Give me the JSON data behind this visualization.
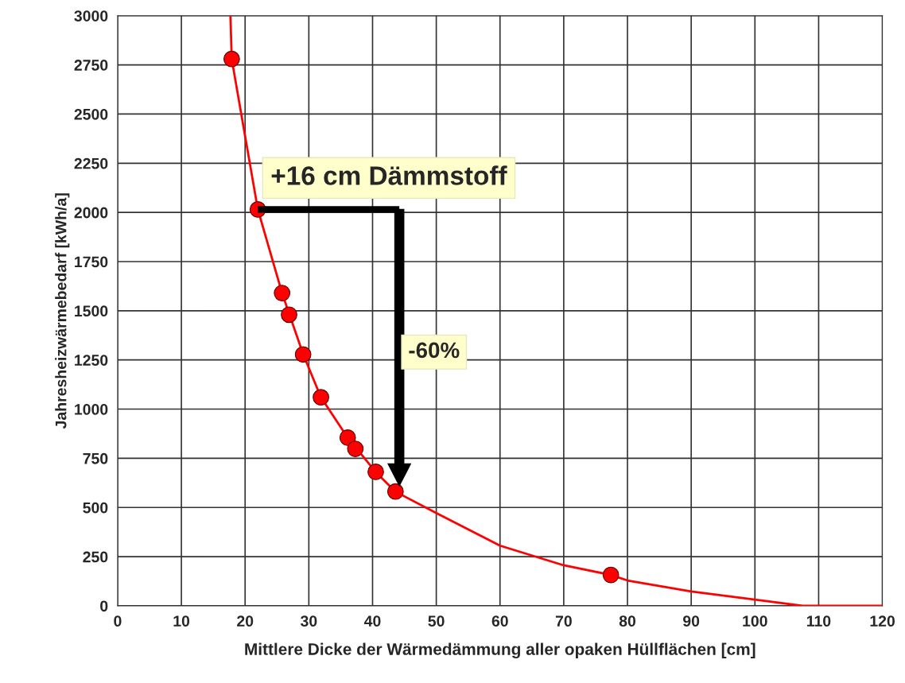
{
  "chart_data": {
    "type": "scatter",
    "xlabel": "Mittlere Dicke der Wärmedämmung aller opaken Hüllflächen [cm]",
    "ylabel": "Jahresheizwärmebedarf [kWh/a]",
    "series": [
      {
        "type": "line",
        "color": "#ff0000",
        "marker": "none",
        "line_style": "solid",
        "x": [
          17.7,
          17.9,
          22.0,
          25.8,
          29.1,
          31.9,
          36.1,
          40.5,
          43.6,
          50,
          60,
          70,
          77.4,
          80,
          90,
          100,
          107.5,
          120
        ],
        "values": [
          3000,
          2780,
          2015,
          1590,
          1280,
          1060,
          855,
          680,
          580,
          472,
          306,
          206,
          157,
          129,
          73,
          32,
          0,
          0
        ]
      },
      {
        "color": "#ff0000",
        "marker": "circle",
        "x": [
          17.9,
          22.0,
          25.8,
          26.9,
          29.1,
          31.9,
          36.1,
          37.3,
          40.5,
          43.6,
          77.4
        ],
        "values": [
          2780,
          2015,
          1590,
          1480,
          1278,
          1060,
          855,
          798,
          681,
          581,
          157
        ]
      }
    ],
    "annotations": [
      "+16 cm Dämmstoff",
      "-60%"
    ],
    "xlim": [
      0,
      120
    ],
    "xticks": [
      0,
      10,
      20,
      30,
      40,
      50,
      60,
      70,
      80,
      90,
      100,
      110,
      120
    ],
    "ylim": [
      0,
      3000
    ],
    "yticks": [
      0,
      250,
      500,
      750,
      1000,
      1250,
      1500,
      1750,
      2000,
      2250,
      2500,
      2750,
      3000
    ],
    "grid": true,
    "legend": false
  }
}
